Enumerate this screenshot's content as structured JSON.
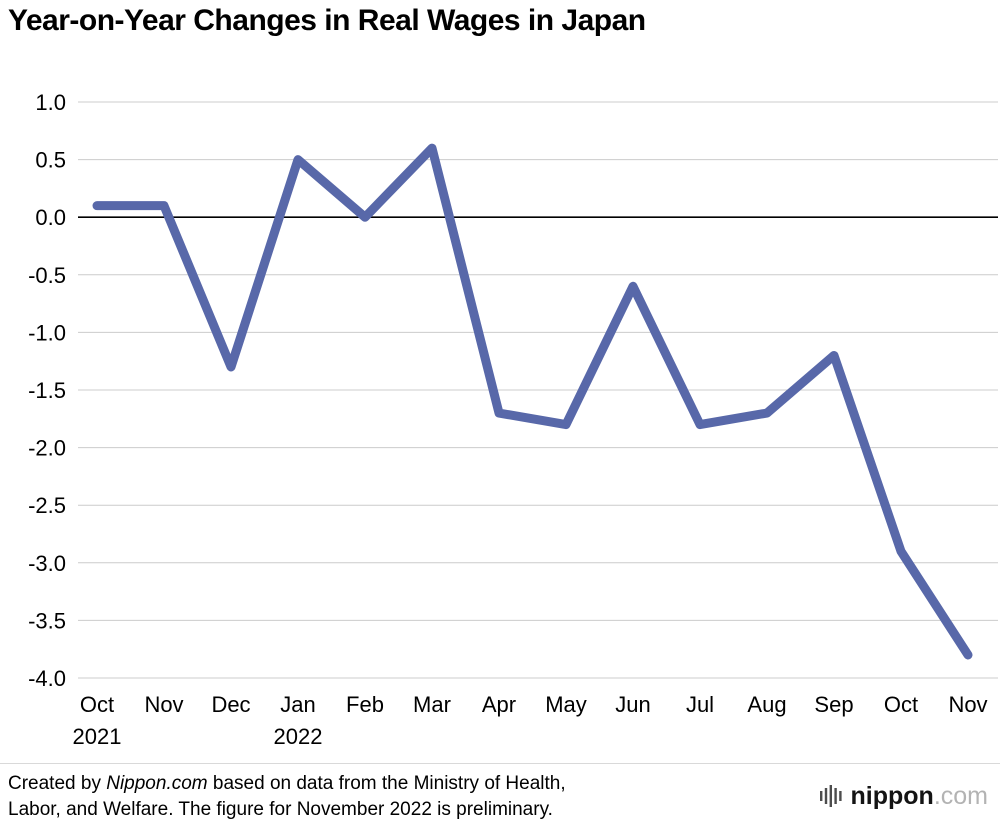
{
  "chart_data": {
    "type": "line",
    "title": "Year-on-Year Changes in Real Wages in Japan",
    "categories": [
      {
        "month": "Oct",
        "year": "2021"
      },
      {
        "month": "Nov",
        "year": ""
      },
      {
        "month": "Dec",
        "year": ""
      },
      {
        "month": "Jan",
        "year": "2022"
      },
      {
        "month": "Feb",
        "year": ""
      },
      {
        "month": "Mar",
        "year": ""
      },
      {
        "month": "Apr",
        "year": ""
      },
      {
        "month": "May",
        "year": ""
      },
      {
        "month": "Jun",
        "year": ""
      },
      {
        "month": "Jul",
        "year": ""
      },
      {
        "month": "Aug",
        "year": ""
      },
      {
        "month": "Sep",
        "year": ""
      },
      {
        "month": "Oct",
        "year": ""
      },
      {
        "month": "Nov",
        "year": ""
      }
    ],
    "values": [
      0.1,
      0.1,
      -1.3,
      0.5,
      0.0,
      0.6,
      -1.7,
      -1.8,
      -0.6,
      -1.8,
      -1.7,
      -1.2,
      -2.9,
      -3.8
    ],
    "ylim": [
      -4.0,
      1.0
    ],
    "yticks": [
      1.0,
      0.5,
      0.0,
      -0.5,
      -1.0,
      -1.5,
      -2.0,
      -2.5,
      -3.0,
      -3.5,
      -4.0
    ],
    "xlabel": "",
    "ylabel": "",
    "grid": true,
    "legend": false,
    "line_color": "#5868a9",
    "line_width": 9,
    "grid_color": "#cccccc",
    "zero_line_color": "#000000"
  },
  "footer": {
    "line1_pre": "Created by ",
    "line1_brand": "Nippon.com",
    "line1_post": " based on data from the Ministry of Health,",
    "line2": "Labor, and Welfare. The figure for November 2022 is preliminary."
  },
  "logo": {
    "icon": "nippon-bars-icon",
    "name": "nippon",
    "tld": ".com"
  }
}
